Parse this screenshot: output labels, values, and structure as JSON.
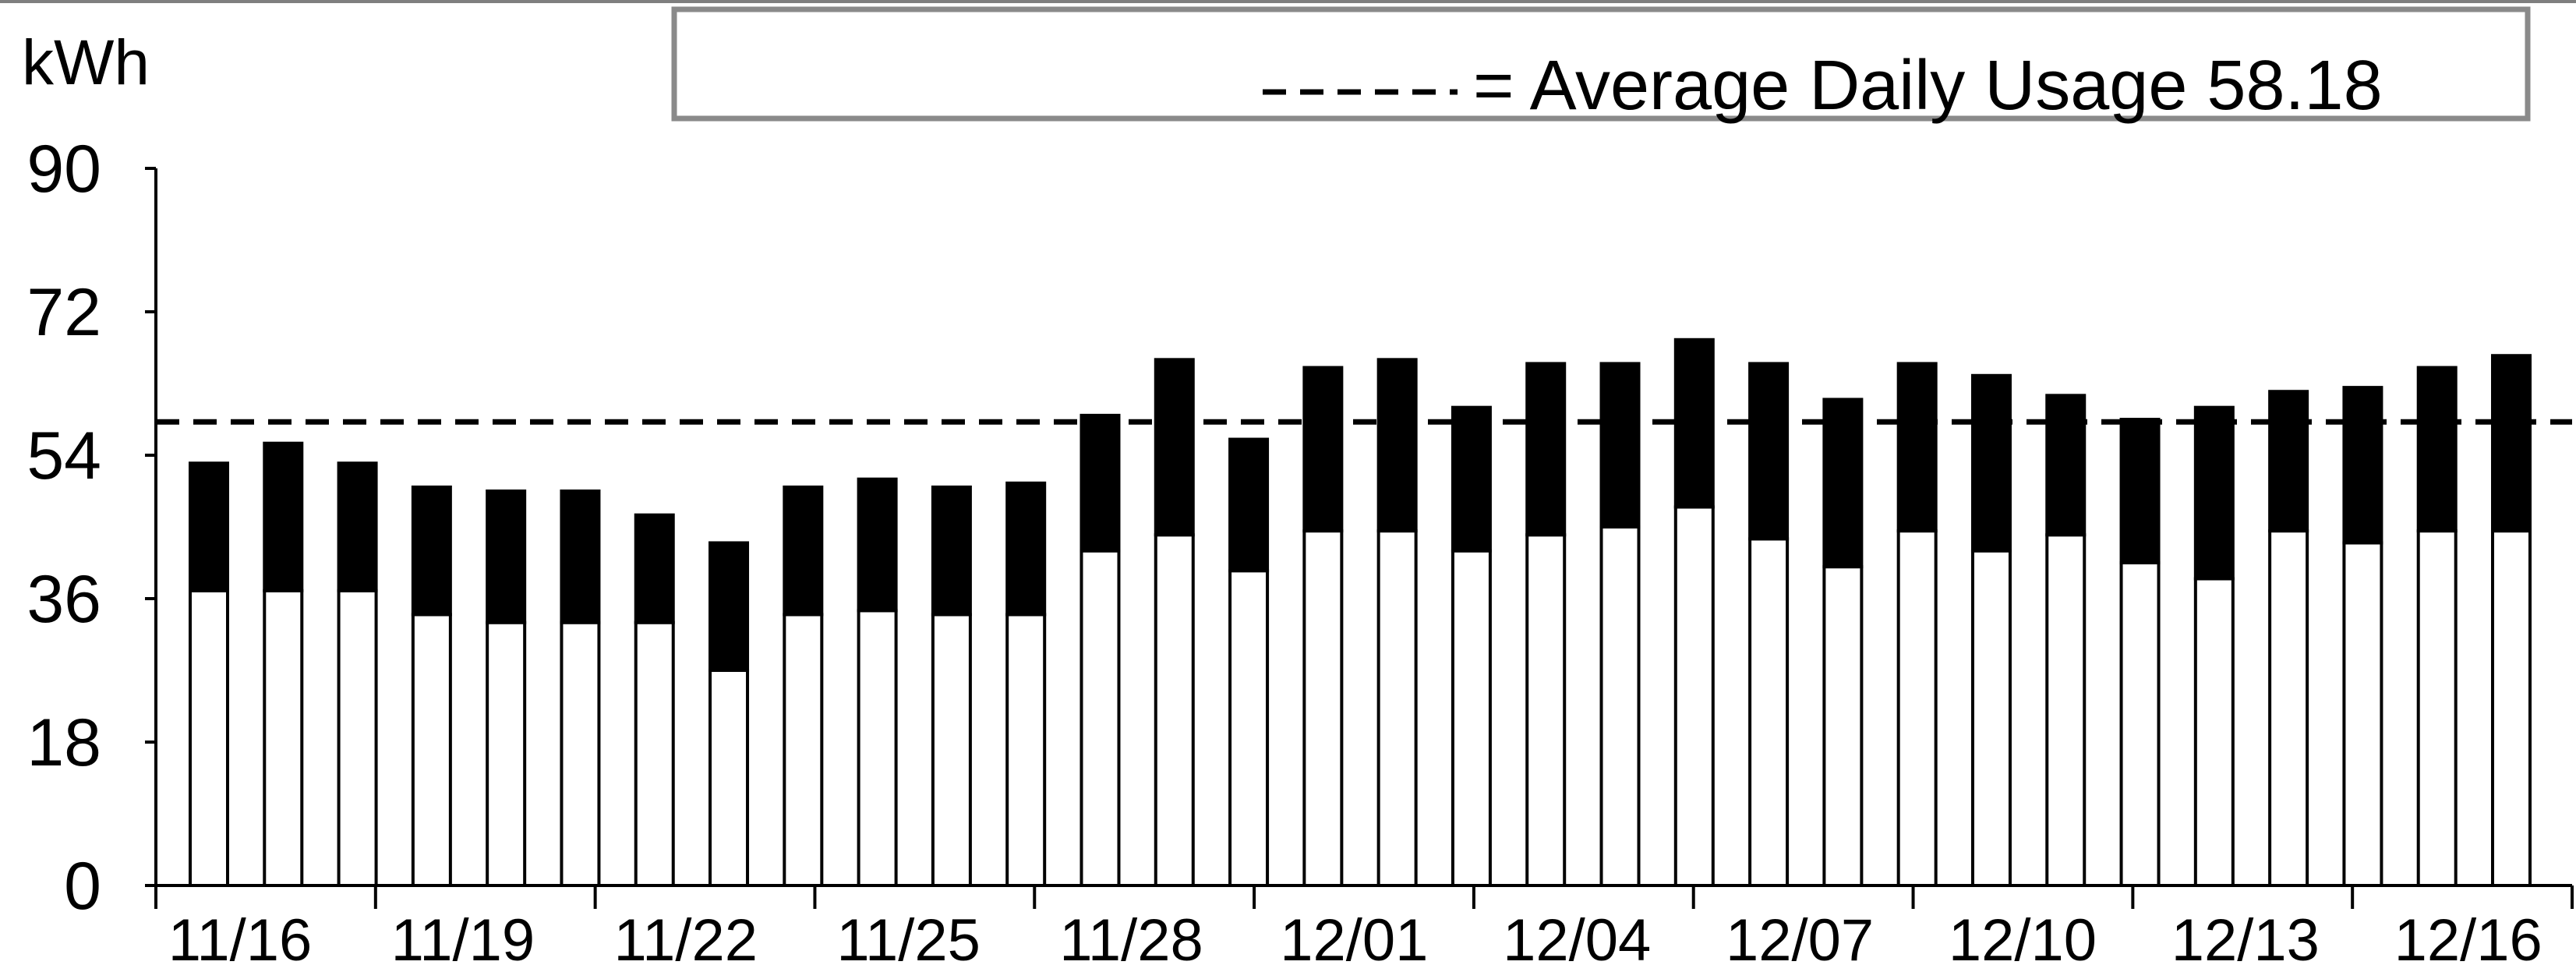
{
  "chart_data": {
    "type": "bar",
    "stacked": true,
    "unit_label": "kWh",
    "legend_text": "= Average Daily Usage 58.18",
    "legend_placement": "top-right",
    "average": 58.18,
    "ylim": [
      0,
      90
    ],
    "yticks": [
      "0",
      "18",
      "36",
      "54",
      "72",
      "90"
    ],
    "xtick_labels": [
      "11/16",
      "11/19",
      "11/22",
      "11/25",
      "11/28",
      "12/01",
      "12/04",
      "12/07",
      "12/10",
      "12/13",
      "12/16"
    ],
    "xtick_every": 3,
    "grid": false,
    "categories": [
      "11/16",
      "11/17",
      "11/18",
      "11/19",
      "11/20",
      "11/21",
      "11/22",
      "11/23",
      "11/24",
      "11/25",
      "11/26",
      "11/27",
      "11/28",
      "11/29",
      "11/30",
      "12/01",
      "12/02",
      "12/03",
      "12/04",
      "12/05",
      "12/06",
      "12/07",
      "12/08",
      "12/09",
      "12/10",
      "12/11",
      "12/12",
      "12/13",
      "12/14",
      "12/15",
      "12/16",
      "12/17"
    ],
    "series": [
      {
        "color": "#ffffff",
        "values": [
          37,
          37,
          37,
          34,
          33,
          33,
          33,
          27,
          34,
          34.5,
          34,
          34,
          42,
          44,
          39.5,
          44.5,
          44.5,
          42,
          44,
          45,
          47.5,
          43.5,
          40,
          44.5,
          42,
          44,
          40.5,
          38.5,
          44.5,
          43,
          44.5,
          44.5
        ]
      },
      {
        "color": "#000000",
        "values": [
          16,
          18.5,
          16,
          16,
          16.5,
          16.5,
          13.5,
          16,
          16,
          16.5,
          16,
          16.5,
          17,
          22,
          16.5,
          20.5,
          21.5,
          18,
          21.5,
          20.5,
          21,
          22,
          21,
          21,
          22,
          17.5,
          18,
          21.5,
          17.5,
          19.5,
          20.5,
          22
        ]
      }
    ]
  }
}
